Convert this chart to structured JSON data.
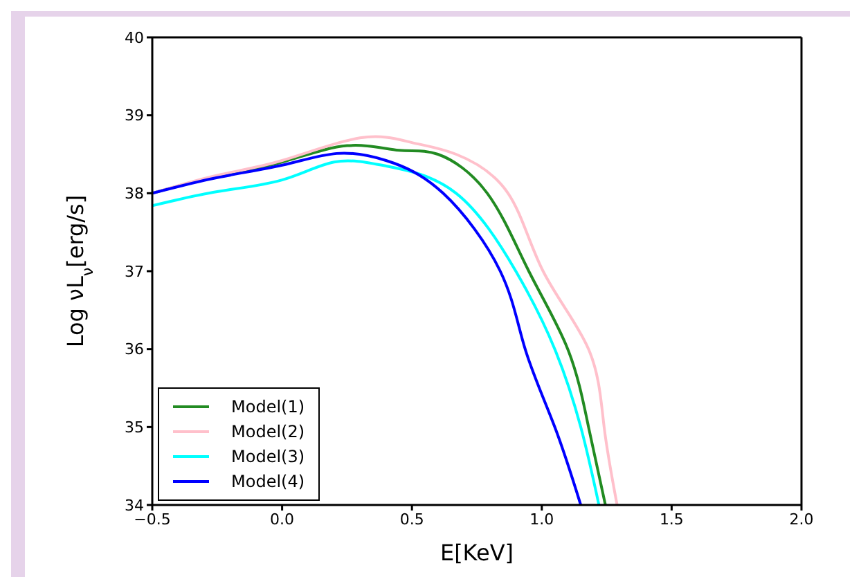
{
  "chart_data": {
    "type": "line",
    "xlabel": "E[KeV]",
    "ylabel": "Log νL$_{ν}$[erg/s]",
    "xlim": [
      -0.5,
      2.0
    ],
    "xticks": [
      -0.5,
      {
        "value": 0,
        "label": "0.0"
      },
      0.5,
      {
        "value": 1,
        "label": "1.0"
      },
      1.5,
      {
        "value": 2,
        "label": "2.0"
      }
    ],
    "ylim": [
      34,
      40
    ],
    "yticks": [
      34,
      35,
      36,
      37,
      38,
      39,
      40
    ],
    "legend": "bottom left",
    "marker": "none",
    "line_style": "solid",
    "series": [
      {
        "name": "Model(1)",
        "color": "#228b22",
        "x": [
          -0.5,
          -0.25,
          0,
          0.25,
          0.45,
          0.6,
          0.79,
          0.95,
          1.1,
          1.18,
          1.245
        ],
        "values": [
          38.0,
          38.22,
          38.4,
          38.61,
          38.55,
          38.5,
          38.0,
          37.0,
          36.0,
          35.0,
          34.0
        ]
      },
      {
        "name": "Model(2)",
        "color": "#ffc0cb",
        "x": [
          -0.5,
          -0.25,
          0,
          0.3,
          0.5,
          0.67,
          0.87,
          1.005,
          1.18,
          1.24,
          1.29
        ],
        "values": [
          38.0,
          38.23,
          38.42,
          38.71,
          38.65,
          38.5,
          38.0,
          37.0,
          36.0,
          35.0,
          34.0
        ]
      },
      {
        "name": "Model(3)",
        "color": "#00ffff",
        "x": [
          -0.5,
          -0.25,
          0,
          0.2,
          0.4,
          0.67,
          0.9,
          1.05,
          1.15,
          1.22
        ],
        "values": [
          37.84,
          38.02,
          38.17,
          38.4,
          38.35,
          38.0,
          37.0,
          36.0,
          35.0,
          34.0
        ]
      },
      {
        "name": "Model(4)",
        "color": "#0000ff",
        "x": [
          -0.5,
          -0.25,
          0,
          0.21,
          0.4,
          0.62,
          0.84,
          0.936,
          1.05,
          1.15
        ],
        "values": [
          38.0,
          38.2,
          38.36,
          38.51,
          38.42,
          38.0,
          37.0,
          36.0,
          35.0,
          34.0
        ]
      }
    ]
  }
}
